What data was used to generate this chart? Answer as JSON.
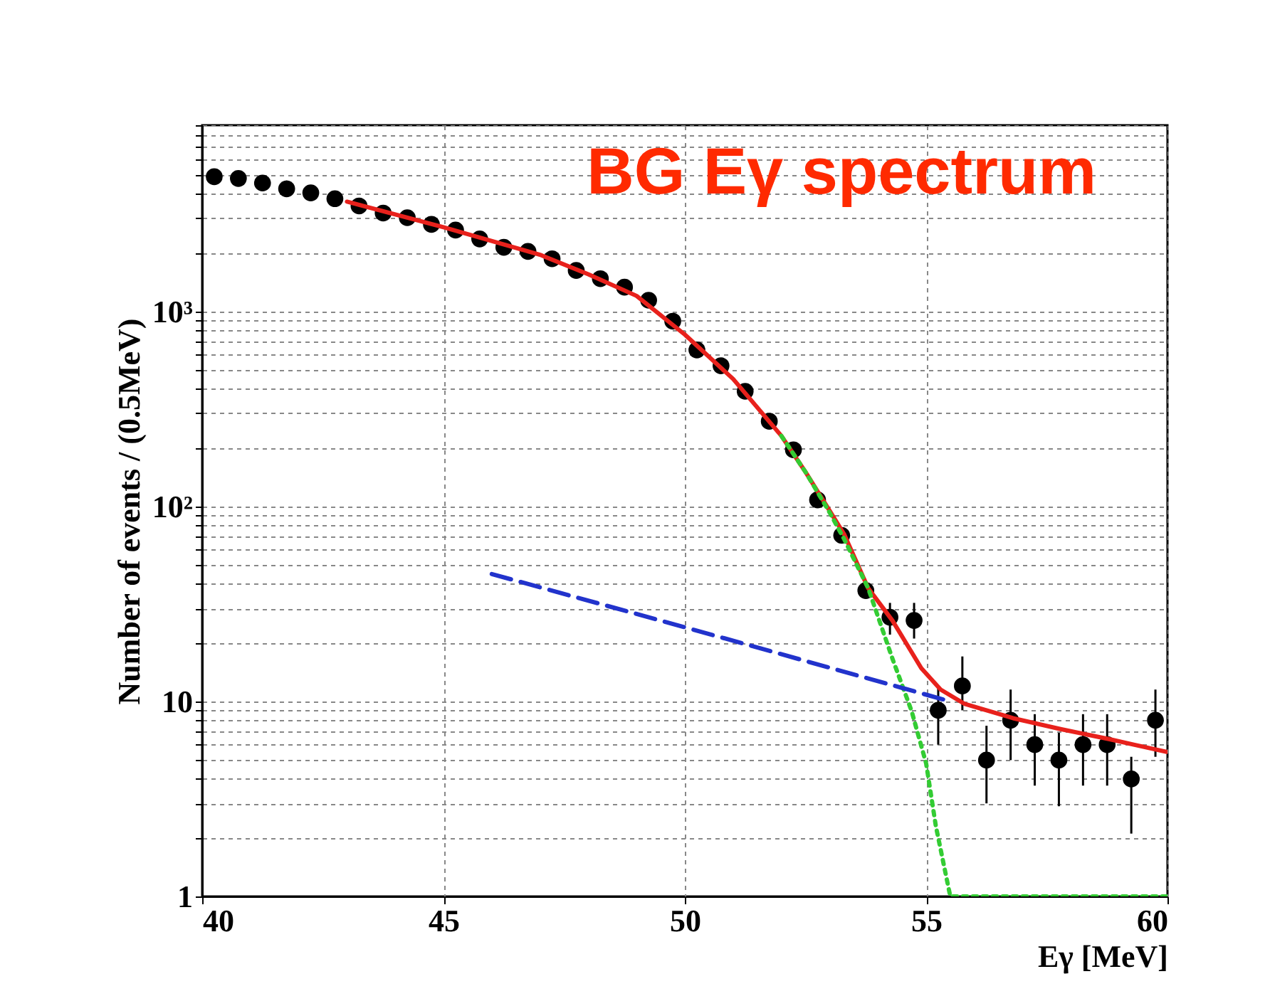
{
  "chart_data": {
    "type": "scatter",
    "title": "BG Eγ spectrum",
    "xlabel": "Eγ [MeV]",
    "ylabel": "Number of events / (0.5MeV)",
    "log": "y",
    "grid": true,
    "xlim": [
      40,
      60
    ],
    "xticks": [
      40,
      45,
      50,
      55,
      60
    ],
    "ylim": [
      1,
      9000
    ],
    "yticks": [
      1,
      {
        "value": 2,
        "label": null
      },
      {
        "value": 3,
        "label": null
      },
      {
        "value": 4,
        "label": null
      },
      {
        "value": 5,
        "label": null
      },
      {
        "value": 6,
        "label": null
      },
      {
        "value": 7,
        "label": null
      },
      {
        "value": 8,
        "label": null
      },
      {
        "value": 9,
        "label": null
      },
      10,
      {
        "value": 20,
        "label": null
      },
      {
        "value": 30,
        "label": null
      },
      {
        "value": 40,
        "label": null
      },
      {
        "value": 50,
        "label": null
      },
      {
        "value": 60,
        "label": null
      },
      {
        "value": 70,
        "label": null
      },
      {
        "value": 80,
        "label": null
      },
      {
        "value": 90,
        "label": null
      },
      {
        "value": 100,
        "label": "10²"
      },
      {
        "value": 200,
        "label": null
      },
      {
        "value": 300,
        "label": null
      },
      {
        "value": 400,
        "label": null
      },
      {
        "value": 500,
        "label": null
      },
      {
        "value": 600,
        "label": null
      },
      {
        "value": 700,
        "label": null
      },
      {
        "value": 800,
        "label": null
      },
      {
        "value": 900,
        "label": null
      },
      {
        "value": 1000,
        "label": "10³"
      },
      {
        "value": 2000,
        "label": null
      },
      {
        "value": 3000,
        "label": null
      },
      {
        "value": 4000,
        "label": null
      },
      {
        "value": 5000,
        "label": null
      },
      {
        "value": 6000,
        "label": null
      },
      {
        "value": 7000,
        "label": null
      },
      {
        "value": 8000,
        "label": null
      },
      {
        "value": 9000,
        "label": null
      }
    ],
    "series": [
      {
        "marker": "circle",
        "color": "#000000",
        "x": [
          40.25,
          40.75,
          41.25,
          41.75,
          42.25,
          42.75,
          43.25,
          43.75,
          44.25,
          44.75,
          45.25,
          45.75,
          46.25,
          46.75,
          47.25,
          47.75,
          48.25,
          48.75,
          49.25,
          49.75,
          50.25,
          50.75,
          51.25,
          51.75,
          52.25,
          52.75,
          53.25,
          53.75,
          54.25,
          54.75,
          55.25,
          55.75,
          56.25,
          56.75,
          57.25,
          57.75,
          58.25,
          58.75,
          59.25,
          59.75
        ],
        "values": [
          4900,
          4800,
          4550,
          4250,
          4050,
          3780,
          3470,
          3190,
          3020,
          2790,
          2610,
          2350,
          2130,
          2030,
          1860,
          1620,
          1470,
          1330,
          1140,
          890,
          634,
          526,
          389,
          273,
          195,
          108,
          71,
          37,
          27,
          26,
          9,
          12,
          5,
          8,
          6,
          5,
          6,
          6,
          4,
          8
        ],
        "errors": [
          null,
          null,
          null,
          null,
          null,
          null,
          null,
          null,
          null,
          null,
          null,
          null,
          null,
          null,
          null,
          null,
          null,
          null,
          null,
          null,
          null,
          null,
          null,
          null,
          null,
          null,
          null,
          null,
          [
            22,
            32
          ],
          [
            21,
            32
          ],
          [
            6,
            12
          ],
          [
            9,
            17
          ],
          [
            3,
            7.5
          ],
          [
            5,
            11.5
          ],
          [
            3.7,
            8.6
          ],
          [
            2.9,
            6.9
          ],
          [
            3.7,
            8.6
          ],
          [
            3.7,
            8.6
          ],
          [
            2.1,
            5.2
          ],
          [
            5.2,
            11.5
          ]
        ]
      },
      {
        "type": "line",
        "color": "#e8211c",
        "line_style": "solid",
        "x": [
          43,
          45,
          47,
          48,
          49,
          50,
          51,
          52,
          52.5,
          53,
          53.3,
          53.8,
          54.3,
          54.9,
          55.3,
          55.8,
          56.8,
          57.8,
          58.8,
          59.3,
          60
        ],
        "values": [
          3650,
          2700,
          1950,
          1550,
          1200,
          760,
          450,
          230,
          150,
          95,
          72,
          38,
          26,
          14.8,
          11.5,
          9.7,
          8.2,
          7.2,
          6.4,
          6.0,
          5.5
        ]
      },
      {
        "type": "line",
        "color": "#33cc33",
        "line_style": "dotted",
        "x": [
          52,
          52.5,
          53,
          53.3,
          53.8,
          54.3,
          54.7,
          55.0,
          55.2,
          55.5,
          60
        ],
        "values": [
          230,
          150,
          93,
          68,
          38,
          16.6,
          8.9,
          4.8,
          2.3,
          1,
          1
        ]
      },
      {
        "type": "line",
        "color": "#2233cc",
        "line_style": "dashed",
        "x": [
          46,
          50,
          55.5
        ],
        "values": [
          45,
          24,
          10
        ]
      }
    ]
  }
}
